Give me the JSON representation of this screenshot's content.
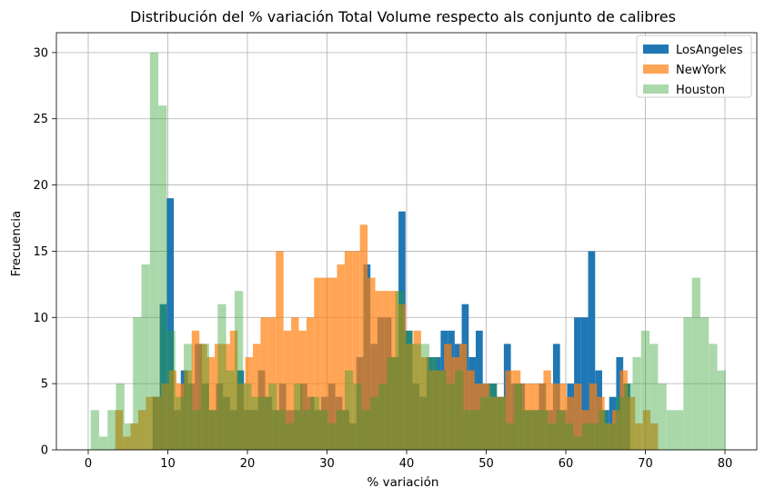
{
  "chart_data": {
    "type": "histogram",
    "title": "Distribución del % variación Total Volume respecto als conjunto de calibres",
    "xlabel": "% variación",
    "ylabel": "Frecuencia",
    "xlim": [
      -4,
      84
    ],
    "ylim": [
      0,
      31.5
    ],
    "xticks": [
      0,
      10,
      20,
      30,
      40,
      50,
      60,
      70,
      80
    ],
    "yticks": [
      0,
      5,
      10,
      15,
      20,
      25,
      30
    ],
    "grid": true,
    "legend_position": "top-right",
    "series": [
      {
        "name": "LosAngeles",
        "color": "#1f77b4",
        "opacity": 1.0,
        "range": [
          8.1,
          68.1
        ],
        "counts": [
          4,
          11,
          19,
          3,
          6,
          5,
          8,
          5,
          3,
          5,
          4,
          3,
          6,
          3,
          3,
          6,
          4,
          3,
          5,
          3,
          3,
          5,
          4,
          3,
          4,
          5,
          4,
          3,
          2,
          7,
          14,
          8,
          10,
          10,
          7,
          18,
          9,
          5,
          4,
          7,
          7,
          9,
          9,
          8,
          11,
          7,
          9,
          5,
          5,
          4,
          8,
          5,
          5,
          3,
          3,
          5,
          3,
          8,
          3,
          5,
          10,
          10,
          15,
          6,
          3,
          4,
          7,
          5
        ]
      },
      {
        "name": "NewYork",
        "color": "#ff7f0e",
        "opacity": 0.7,
        "range": [
          3.4,
          71.6
        ],
        "counts": [
          3,
          1,
          2,
          3,
          4,
          4,
          5,
          6,
          5,
          6,
          9,
          8,
          7,
          8,
          8,
          9,
          5,
          7,
          8,
          10,
          10,
          15,
          9,
          10,
          9,
          10,
          13,
          13,
          13,
          14,
          15,
          15,
          17,
          13,
          12,
          12,
          12,
          11,
          8,
          9,
          7,
          6,
          6,
          8,
          7,
          8,
          6,
          5,
          5,
          4,
          4,
          6,
          6,
          5,
          5,
          5,
          6,
          5,
          5,
          4,
          5,
          3,
          5,
          4,
          2,
          3,
          6,
          4,
          2,
          3,
          2
        ]
      },
      {
        "name": "Houston",
        "color": "#2ca02c",
        "opacity": 0.4,
        "range": [
          0.3,
          80.1
        ],
        "counts": [
          3,
          1,
          3,
          5,
          2,
          10,
          14,
          30,
          26,
          9,
          4,
          8,
          3,
          8,
          3,
          11,
          6,
          12,
          5,
          4,
          4,
          5,
          3,
          2,
          5,
          3,
          4,
          3,
          2,
          3,
          6,
          5,
          3,
          4,
          5,
          7,
          12,
          9,
          8,
          8,
          7,
          6,
          5,
          6,
          3,
          3,
          4,
          5,
          4,
          2,
          5,
          3,
          3,
          3,
          2,
          3,
          2,
          1,
          2,
          2,
          3,
          2,
          4,
          5,
          7,
          9,
          8,
          5,
          3,
          3,
          10,
          13,
          10,
          8,
          6
        ]
      }
    ]
  }
}
